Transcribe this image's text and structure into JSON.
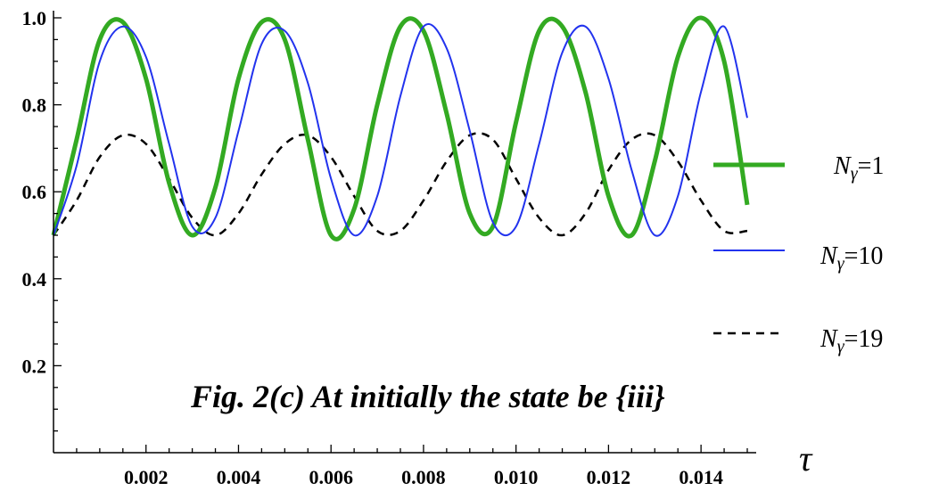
{
  "chart_data": {
    "type": "line",
    "title": "",
    "caption": "Fig. 2(c) At initially the state be {iii}",
    "xlabel": "τ",
    "ylabel": "",
    "xlim": [
      0,
      0.015
    ],
    "ylim": [
      0,
      1.0
    ],
    "x_ticks": [
      "0.002",
      "0.004",
      "0.006",
      "0.008",
      "0.010",
      "0.012",
      "0.014"
    ],
    "y_ticks": [
      "0.2",
      "0.4",
      "0.6",
      "0.8",
      "1.0"
    ],
    "series": [
      {
        "name": "N_γ=1",
        "label_var": "N",
        "label_sub": "γ",
        "label_val": "=1",
        "color": "#33aa22",
        "style": "thick-solid",
        "x": [
          0,
          0.0005,
          0.001,
          0.0015,
          0.002,
          0.0025,
          0.003,
          0.0035,
          0.004,
          0.0045,
          0.005,
          0.0055,
          0.006,
          0.0065,
          0.007,
          0.0075,
          0.008,
          0.0085,
          0.009,
          0.0095,
          0.01,
          0.0105,
          0.011,
          0.0115,
          0.012,
          0.0125,
          0.013,
          0.0135,
          0.014,
          0.0145,
          0.015
        ],
        "values": [
          0.5,
          0.72,
          0.95,
          0.99,
          0.86,
          0.62,
          0.5,
          0.61,
          0.86,
          0.99,
          0.95,
          0.72,
          0.5,
          0.56,
          0.8,
          0.98,
          0.97,
          0.78,
          0.55,
          0.52,
          0.76,
          0.97,
          0.98,
          0.83,
          0.59,
          0.5,
          0.67,
          0.91,
          1.0,
          0.9,
          0.57
        ]
      },
      {
        "name": "N_γ=10",
        "label_var": "N",
        "label_sub": "γ",
        "label_val": "=10",
        "color": "#2233ee",
        "style": "thin-solid",
        "x": [
          0,
          0.0005,
          0.001,
          0.0015,
          0.002,
          0.0025,
          0.003,
          0.0035,
          0.004,
          0.0045,
          0.005,
          0.0055,
          0.006,
          0.0065,
          0.007,
          0.0075,
          0.008,
          0.0085,
          0.009,
          0.0095,
          0.01,
          0.0105,
          0.011,
          0.0115,
          0.012,
          0.0125,
          0.013,
          0.0135,
          0.014,
          0.0145,
          0.015
        ],
        "values": [
          0.5,
          0.66,
          0.9,
          0.98,
          0.91,
          0.71,
          0.52,
          0.54,
          0.74,
          0.94,
          0.97,
          0.85,
          0.63,
          0.5,
          0.59,
          0.82,
          0.98,
          0.93,
          0.74,
          0.53,
          0.52,
          0.71,
          0.92,
          0.98,
          0.86,
          0.65,
          0.5,
          0.59,
          0.83,
          0.98,
          0.77
        ]
      },
      {
        "name": "N_γ=19",
        "label_var": "N",
        "label_sub": "γ",
        "label_val": "=19",
        "color": "#000000",
        "style": "dashed",
        "x": [
          0,
          0.0005,
          0.001,
          0.0015,
          0.002,
          0.0025,
          0.003,
          0.0035,
          0.004,
          0.0045,
          0.005,
          0.0055,
          0.006,
          0.0065,
          0.007,
          0.0075,
          0.008,
          0.0085,
          0.009,
          0.0095,
          0.01,
          0.0105,
          0.011,
          0.0115,
          0.012,
          0.0125,
          0.013,
          0.0135,
          0.014,
          0.0145,
          0.015
        ],
        "values": [
          0.5,
          0.58,
          0.68,
          0.73,
          0.71,
          0.63,
          0.54,
          0.5,
          0.55,
          0.64,
          0.71,
          0.73,
          0.68,
          0.59,
          0.51,
          0.51,
          0.58,
          0.67,
          0.73,
          0.72,
          0.63,
          0.54,
          0.5,
          0.55,
          0.65,
          0.72,
          0.73,
          0.67,
          0.58,
          0.51,
          0.51
        ]
      }
    ],
    "legend_position": "right",
    "grid": false
  }
}
